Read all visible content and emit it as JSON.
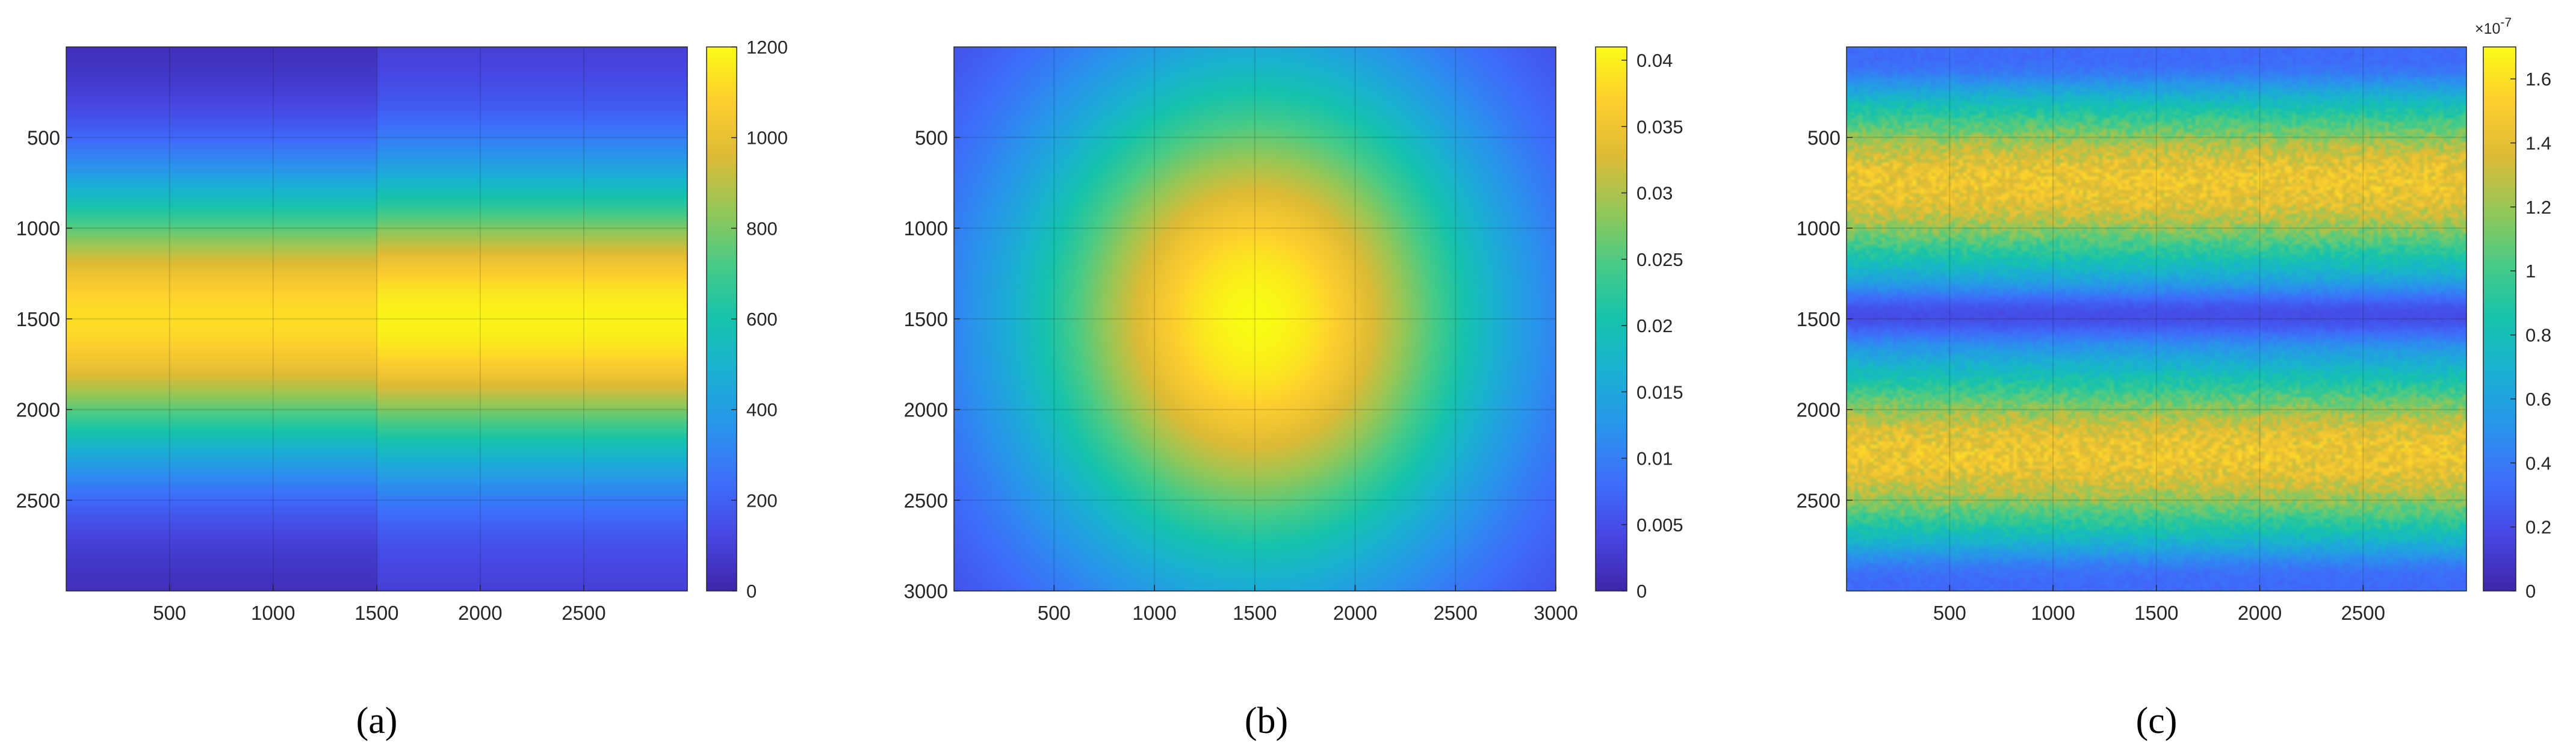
{
  "chart_data": [
    {
      "type": "heatmap",
      "panel": "a",
      "caption": "(a)",
      "xlim": [
        1,
        3000
      ],
      "ylim": [
        1,
        3000
      ],
      "y_reversed": true,
      "xticks": [
        500,
        1000,
        1500,
        2000,
        2500
      ],
      "yticks": [
        500,
        1000,
        1500,
        2000,
        2500
      ],
      "grid": true,
      "colormap": "parula",
      "colorbar": {
        "min": 0,
        "max": 1200,
        "ticks": [
          0,
          200,
          400,
          600,
          800,
          1000,
          1200
        ],
        "tick_labels": [
          "0",
          "200",
          "400",
          "600",
          "800",
          "1000",
          "1200"
        ],
        "exponent_label": ""
      },
      "field": {
        "pattern": "horizontal-band",
        "peak_row": 1500,
        "band_sigma_rows": 780,
        "peak_value": 1150,
        "edge_value": 40,
        "seam_col": 1500,
        "right_half_offset": 60
      }
    },
    {
      "type": "heatmap",
      "panel": "b",
      "caption": "(b)",
      "xlim": [
        1,
        3000
      ],
      "ylim": [
        1,
        3000
      ],
      "y_reversed": true,
      "xticks": [
        500,
        1000,
        1500,
        2000,
        2500,
        3000
      ],
      "yticks": [
        500,
        1000,
        1500,
        2000,
        2500,
        3000
      ],
      "grid": true,
      "colormap": "parula",
      "colorbar": {
        "min": 0,
        "max": 0.041,
        "ticks": [
          0,
          0.005,
          0.01,
          0.015,
          0.02,
          0.025,
          0.03,
          0.035,
          0.04
        ],
        "tick_labels": [
          "0",
          "0.005",
          "0.01",
          "0.015",
          "0.02",
          "0.025",
          "0.03",
          "0.035",
          "0.04"
        ],
        "exponent_label": ""
      },
      "field": {
        "pattern": "elliptical-peak",
        "center_col": 1500,
        "center_row": 1500,
        "radius_cols": 1500,
        "radius_rows": 1800,
        "peak_value": 0.041,
        "edge_value": 0.003
      }
    },
    {
      "type": "heatmap",
      "panel": "c",
      "caption": "(c)",
      "xlim": [
        1,
        3000
      ],
      "ylim": [
        1,
        3000
      ],
      "y_reversed": true,
      "xticks": [
        500,
        1000,
        1500,
        2000,
        2500
      ],
      "yticks": [
        500,
        1000,
        1500,
        2000,
        2500
      ],
      "grid": true,
      "colormap": "parula",
      "colorbar": {
        "min": 0,
        "max": 1.7e-07,
        "ticks": [
          0,
          2e-08,
          4e-08,
          6e-08,
          8e-08,
          1e-07,
          1.2e-07,
          1.4e-07,
          1.6e-07
        ],
        "tick_labels": [
          "0",
          "0.2",
          "0.4",
          "0.6",
          "0.8",
          "1",
          "1.2",
          "1.4",
          "1.6"
        ],
        "exponent_label": "×10",
        "exponent_power": "-7"
      },
      "field": {
        "pattern": "noisy-double-band",
        "bright_rows": [
          750,
          2250
        ],
        "dark_row": 1480,
        "peak_value": 1.45e-07,
        "dark_value": 2e-08,
        "edge_value": 3e-08,
        "band_sigma_rows": 480,
        "noise": 0.1
      }
    }
  ]
}
